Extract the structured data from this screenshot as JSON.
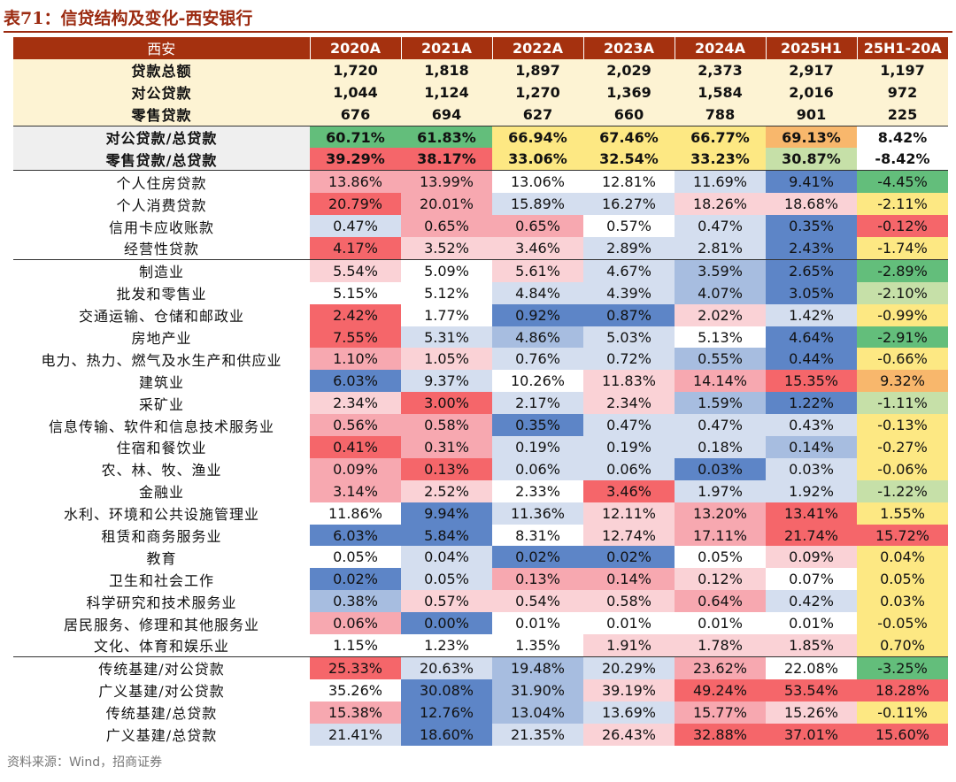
{
  "title": "表71：信贷结构及变化-西安银行",
  "source": "资料来源：Wind，招商证券",
  "colors": {
    "g_dark": "#63be7b",
    "g_light": "#c6e0a8",
    "yellow": "#fde883",
    "orange": "#f8b76c",
    "red": "#f5666a",
    "pink": "#f7a8b0",
    "pink_light": "#fad2d6",
    "white": "#ffffff",
    "blue_light": "#d4deef",
    "blue_mid": "#a7bde0",
    "blue_dark": "#5d85c7"
  },
  "table": {
    "header": [
      "西安",
      "2020A",
      "2021A",
      "2022A",
      "2023A",
      "2024A",
      "2025H1",
      "25H1-20A"
    ],
    "rows": [
      {
        "g": 0,
        "label": "贷款总额",
        "values": [
          "1,720",
          "1,818",
          "1,897",
          "2,029",
          "2,373",
          "2,917",
          "1,197"
        ],
        "colors": [
          "",
          "",
          "",
          "",
          "",
          "",
          ""
        ]
      },
      {
        "g": 0,
        "label": "对公贷款",
        "values": [
          "1,044",
          "1,124",
          "1,270",
          "1,369",
          "1,584",
          "2,016",
          "972"
        ],
        "colors": [
          "",
          "",
          "",
          "",
          "",
          "",
          ""
        ]
      },
      {
        "g": 0,
        "label": "零售贷款",
        "values": [
          "676",
          "694",
          "627",
          "660",
          "788",
          "901",
          "225"
        ],
        "colors": [
          "",
          "",
          "",
          "",
          "",
          "",
          ""
        ]
      },
      {
        "g": 1,
        "label": "对公贷款/总贷款",
        "values": [
          "60.71%",
          "61.83%",
          "66.94%",
          "67.46%",
          "66.77%",
          "69.13%",
          "8.42%"
        ],
        "colors": [
          "g_dark",
          "g_dark",
          "yellow",
          "yellow",
          "yellow",
          "orange",
          "white"
        ]
      },
      {
        "g": 1,
        "label": "零售贷款/总贷款",
        "values": [
          "39.29%",
          "38.17%",
          "33.06%",
          "32.54%",
          "33.23%",
          "30.87%",
          "-8.42%"
        ],
        "colors": [
          "red",
          "red",
          "yellow",
          "yellow",
          "yellow",
          "g_light",
          "white"
        ]
      },
      {
        "g": 2,
        "label": "个人住房贷款",
        "values": [
          "13.86%",
          "13.99%",
          "13.06%",
          "12.81%",
          "11.69%",
          "9.41%",
          "-4.45%"
        ],
        "colors": [
          "pink",
          "pink",
          "white",
          "white",
          "blue_light",
          "blue_dark",
          "g_dark"
        ]
      },
      {
        "g": 2,
        "label": "个人消费贷款",
        "values": [
          "20.79%",
          "20.01%",
          "15.89%",
          "16.27%",
          "18.26%",
          "18.68%",
          "-2.11%"
        ],
        "colors": [
          "red",
          "pink",
          "blue_light",
          "blue_light",
          "pink_light",
          "pink_light",
          "yellow"
        ]
      },
      {
        "g": 2,
        "label": "信用卡应收账款",
        "values": [
          "0.47%",
          "0.65%",
          "0.65%",
          "0.57%",
          "0.47%",
          "0.35%",
          "-0.12%"
        ],
        "colors": [
          "blue_light",
          "pink",
          "pink",
          "white",
          "blue_light",
          "blue_dark",
          "red"
        ]
      },
      {
        "g": 2,
        "label": "经营性贷款",
        "values": [
          "4.17%",
          "3.52%",
          "3.46%",
          "2.89%",
          "2.81%",
          "2.43%",
          "-1.74%"
        ],
        "colors": [
          "red",
          "pink_light",
          "pink_light",
          "blue_light",
          "blue_light",
          "blue_dark",
          "yellow"
        ]
      },
      {
        "g": 3,
        "label": "制造业",
        "values": [
          "5.54%",
          "5.09%",
          "5.61%",
          "4.67%",
          "3.59%",
          "2.65%",
          "-2.89%"
        ],
        "colors": [
          "pink_light",
          "white",
          "pink_light",
          "blue_light",
          "blue_mid",
          "blue_dark",
          "g_dark"
        ]
      },
      {
        "g": 3,
        "label": "批发和零售业",
        "values": [
          "5.15%",
          "5.12%",
          "4.84%",
          "4.39%",
          "4.07%",
          "3.05%",
          "-2.10%"
        ],
        "colors": [
          "white",
          "white",
          "blue_light",
          "blue_light",
          "blue_mid",
          "blue_dark",
          "g_light"
        ]
      },
      {
        "g": 3,
        "label": "交通运输、仓储和邮政业",
        "values": [
          "2.42%",
          "1.77%",
          "0.92%",
          "0.87%",
          "2.02%",
          "1.42%",
          "-0.99%"
        ],
        "colors": [
          "red",
          "white",
          "blue_dark",
          "blue_dark",
          "pink_light",
          "blue_light",
          "yellow"
        ]
      },
      {
        "g": 3,
        "label": "房地产业",
        "values": [
          "7.55%",
          "5.31%",
          "4.86%",
          "5.03%",
          "5.13%",
          "4.64%",
          "-2.91%"
        ],
        "colors": [
          "red",
          "blue_light",
          "blue_mid",
          "blue_light",
          "white",
          "blue_dark",
          "g_dark"
        ]
      },
      {
        "g": 3,
        "label": "电力、热力、燃气及水生产和供应业",
        "values": [
          "1.10%",
          "1.05%",
          "0.76%",
          "0.72%",
          "0.55%",
          "0.44%",
          "-0.66%"
        ],
        "colors": [
          "pink",
          "pink_light",
          "blue_light",
          "blue_light",
          "blue_mid",
          "blue_dark",
          "yellow"
        ]
      },
      {
        "g": 3,
        "label": "建筑业",
        "values": [
          "6.03%",
          "9.37%",
          "10.26%",
          "11.83%",
          "14.14%",
          "15.35%",
          "9.32%"
        ],
        "colors": [
          "blue_dark",
          "blue_light",
          "white",
          "pink_light",
          "pink",
          "red",
          "orange"
        ]
      },
      {
        "g": 3,
        "label": "采矿业",
        "values": [
          "2.34%",
          "3.00%",
          "2.17%",
          "2.34%",
          "1.59%",
          "1.22%",
          "-1.11%"
        ],
        "colors": [
          "pink_light",
          "red",
          "blue_light",
          "pink_light",
          "blue_mid",
          "blue_dark",
          "g_light"
        ]
      },
      {
        "g": 3,
        "label": "信息传输、软件和信息技术服务业",
        "values": [
          "0.56%",
          "0.58%",
          "0.35%",
          "0.47%",
          "0.47%",
          "0.43%",
          "-0.13%"
        ],
        "colors": [
          "pink",
          "pink",
          "blue_dark",
          "blue_light",
          "blue_light",
          "blue_light",
          "yellow"
        ]
      },
      {
        "g": 3,
        "label": "住宿和餐饮业",
        "values": [
          "0.41%",
          "0.31%",
          "0.19%",
          "0.19%",
          "0.18%",
          "0.14%",
          "-0.27%"
        ],
        "colors": [
          "red",
          "pink",
          "blue_light",
          "blue_light",
          "blue_light",
          "blue_mid",
          "yellow"
        ]
      },
      {
        "g": 3,
        "label": "农、林、牧、渔业",
        "values": [
          "0.09%",
          "0.13%",
          "0.06%",
          "0.06%",
          "0.03%",
          "0.03%",
          "-0.06%"
        ],
        "colors": [
          "pink",
          "red",
          "blue_light",
          "blue_light",
          "blue_dark",
          "blue_light",
          "yellow"
        ]
      },
      {
        "g": 3,
        "label": "金融业",
        "values": [
          "3.14%",
          "2.52%",
          "2.33%",
          "3.46%",
          "1.97%",
          "1.92%",
          "-1.22%"
        ],
        "colors": [
          "pink",
          "pink_light",
          "white",
          "red",
          "blue_light",
          "blue_light",
          "g_light"
        ]
      },
      {
        "g": 3,
        "label": "水利、环境和公共设施管理业",
        "values": [
          "11.86%",
          "9.94%",
          "11.36%",
          "12.11%",
          "13.20%",
          "13.41%",
          "1.55%"
        ],
        "colors": [
          "white",
          "blue_dark",
          "blue_light",
          "pink_light",
          "pink",
          "red",
          "yellow"
        ]
      },
      {
        "g": 3,
        "label": "租赁和商务服务业",
        "values": [
          "6.03%",
          "5.84%",
          "8.31%",
          "12.74%",
          "17.11%",
          "21.74%",
          "15.72%"
        ],
        "colors": [
          "blue_dark",
          "blue_dark",
          "white",
          "pink_light",
          "pink",
          "red",
          "red"
        ]
      },
      {
        "g": 3,
        "label": "教育",
        "values": [
          "0.05%",
          "0.04%",
          "0.02%",
          "0.02%",
          "0.05%",
          "0.09%",
          "0.04%"
        ],
        "colors": [
          "white",
          "blue_light",
          "blue_dark",
          "blue_dark",
          "white",
          "pink_light",
          "yellow"
        ]
      },
      {
        "g": 3,
        "label": "卫生和社会工作",
        "values": [
          "0.02%",
          "0.05%",
          "0.13%",
          "0.14%",
          "0.12%",
          "0.07%",
          "0.05%"
        ],
        "colors": [
          "blue_dark",
          "blue_light",
          "pink",
          "pink",
          "pink_light",
          "white",
          "yellow"
        ]
      },
      {
        "g": 3,
        "label": "科学研究和技术服务业",
        "values": [
          "0.38%",
          "0.57%",
          "0.54%",
          "0.58%",
          "0.64%",
          "0.42%",
          "0.03%"
        ],
        "colors": [
          "blue_mid",
          "pink_light",
          "pink_light",
          "pink_light",
          "pink",
          "blue_light",
          "yellow"
        ]
      },
      {
        "g": 3,
        "label": "居民服务、修理和其他服务业",
        "values": [
          "0.06%",
          "0.00%",
          "0.01%",
          "0.01%",
          "0.01%",
          "0.01%",
          "-0.05%"
        ],
        "colors": [
          "pink",
          "blue_dark",
          "white",
          "white",
          "white",
          "white",
          "yellow"
        ]
      },
      {
        "g": 3,
        "label": "文化、体育和娱乐业",
        "values": [
          "1.15%",
          "1.23%",
          "1.35%",
          "1.91%",
          "1.78%",
          "1.85%",
          "0.70%"
        ],
        "colors": [
          "white",
          "white",
          "white",
          "pink_light",
          "pink_light",
          "pink_light",
          "yellow"
        ]
      },
      {
        "g": 4,
        "label": "传统基建/对公贷款",
        "values": [
          "25.33%",
          "20.63%",
          "19.48%",
          "20.29%",
          "23.62%",
          "22.08%",
          "-3.25%"
        ],
        "colors": [
          "red",
          "blue_light",
          "blue_mid",
          "blue_light",
          "pink",
          "white",
          "g_dark"
        ]
      },
      {
        "g": 4,
        "label": "广义基建/对公贷款",
        "values": [
          "35.26%",
          "30.08%",
          "31.90%",
          "39.19%",
          "49.24%",
          "53.54%",
          "18.28%"
        ],
        "colors": [
          "white",
          "blue_dark",
          "blue_mid",
          "pink_light",
          "red",
          "red",
          "red"
        ]
      },
      {
        "g": 4,
        "label": "传统基建/总贷款",
        "values": [
          "15.38%",
          "12.76%",
          "13.04%",
          "13.69%",
          "15.77%",
          "15.26%",
          "-0.11%"
        ],
        "colors": [
          "pink",
          "blue_dark",
          "blue_mid",
          "blue_light",
          "pink",
          "pink_light",
          "yellow"
        ]
      },
      {
        "g": 4,
        "label": "广义基建/总贷款",
        "values": [
          "21.41%",
          "18.60%",
          "21.35%",
          "26.43%",
          "32.88%",
          "37.01%",
          "15.60%"
        ],
        "colors": [
          "blue_light",
          "blue_dark",
          "blue_light",
          "pink_light",
          "red",
          "red",
          "red"
        ]
      }
    ]
  }
}
